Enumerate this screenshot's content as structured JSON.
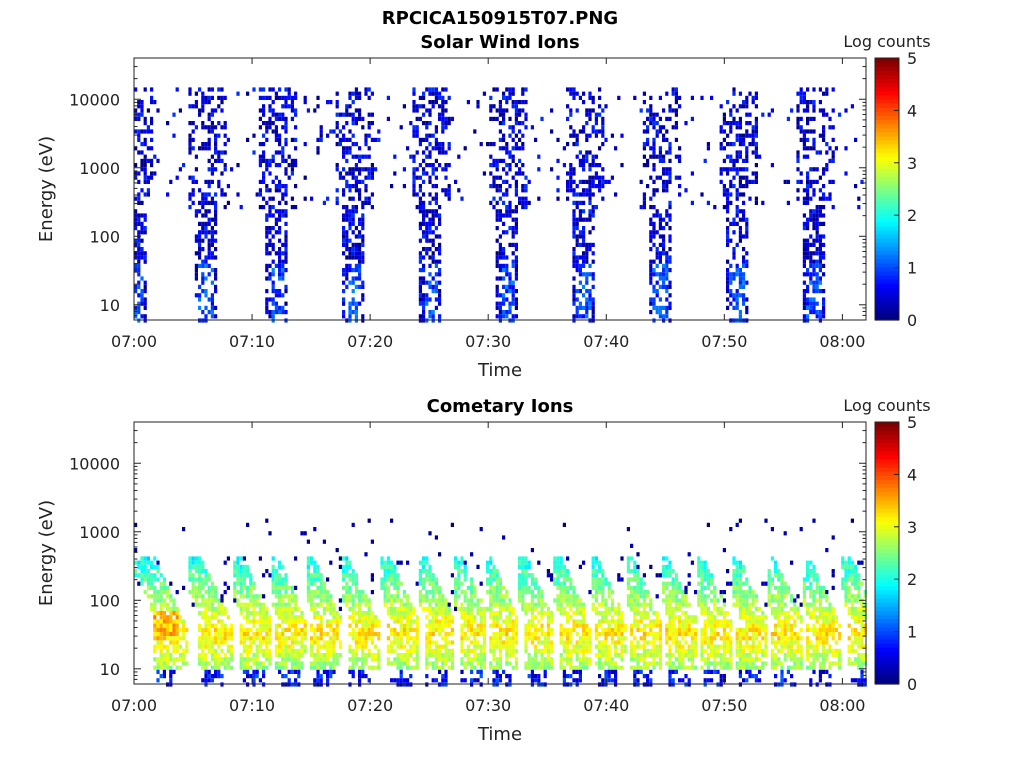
{
  "figure": {
    "title": "RPCICA150915T07.PNG"
  },
  "colorbar": {
    "label": "Log counts",
    "ticks": [
      "0",
      "1",
      "2",
      "3",
      "4",
      "5"
    ],
    "range": [
      0,
      5
    ],
    "colormap": "jet"
  },
  "chart_data": [
    {
      "type": "heatmap",
      "title": "Solar Wind Ions",
      "xlabel": "Time",
      "ylabel": "Energy (eV)",
      "xlim": [
        "07:00",
        "08:02"
      ],
      "ylim": [
        6,
        40000
      ],
      "yscale": "log",
      "xticks": [
        "07:00",
        "07:10",
        "07:20",
        "07:30",
        "07:40",
        "07:50",
        "08:00"
      ],
      "yticks": [
        "10",
        "100",
        "1000",
        "10000"
      ],
      "burst_centers": [
        "07:00",
        "07:06",
        "07:12",
        "07:18.5",
        "07:25",
        "07:31.5",
        "07:38",
        "07:44.5",
        "07:51",
        "07:57.5"
      ],
      "features": [
        {
          "description": "sparse counts 10 eV - 15 keV, log counts ~0-1",
          "value_range": [
            0,
            1.2
          ]
        }
      ]
    },
    {
      "type": "heatmap",
      "title": "Cometary Ions",
      "xlabel": "Time",
      "ylabel": "Energy (eV)",
      "xlim": [
        "07:00",
        "08:02"
      ],
      "ylim": [
        6,
        40000
      ],
      "yscale": "log",
      "xticks": [
        "07:00",
        "07:10",
        "07:20",
        "07:30",
        "07:40",
        "07:50",
        "08:00"
      ],
      "yticks": [
        "10",
        "100",
        "1000",
        "10000"
      ],
      "burst_centers": [
        "07:02.5",
        "07:06.5",
        "07:10",
        "07:13",
        "07:16",
        "07:19",
        "07:22.5",
        "07:25.5",
        "07:28.5",
        "07:31",
        "07:34",
        "07:37",
        "07:40",
        "07:43",
        "07:46",
        "07:49",
        "07:52",
        "07:55",
        "07:58",
        "08:01.5"
      ],
      "features": [
        {
          "description": "dispersed bands 15-400 eV, log counts ~1-3.8",
          "value_range": [
            0.5,
            3.8
          ]
        },
        {
          "description": "isolated counts above 1 keV",
          "value_range": [
            0,
            0.3
          ]
        }
      ]
    }
  ]
}
